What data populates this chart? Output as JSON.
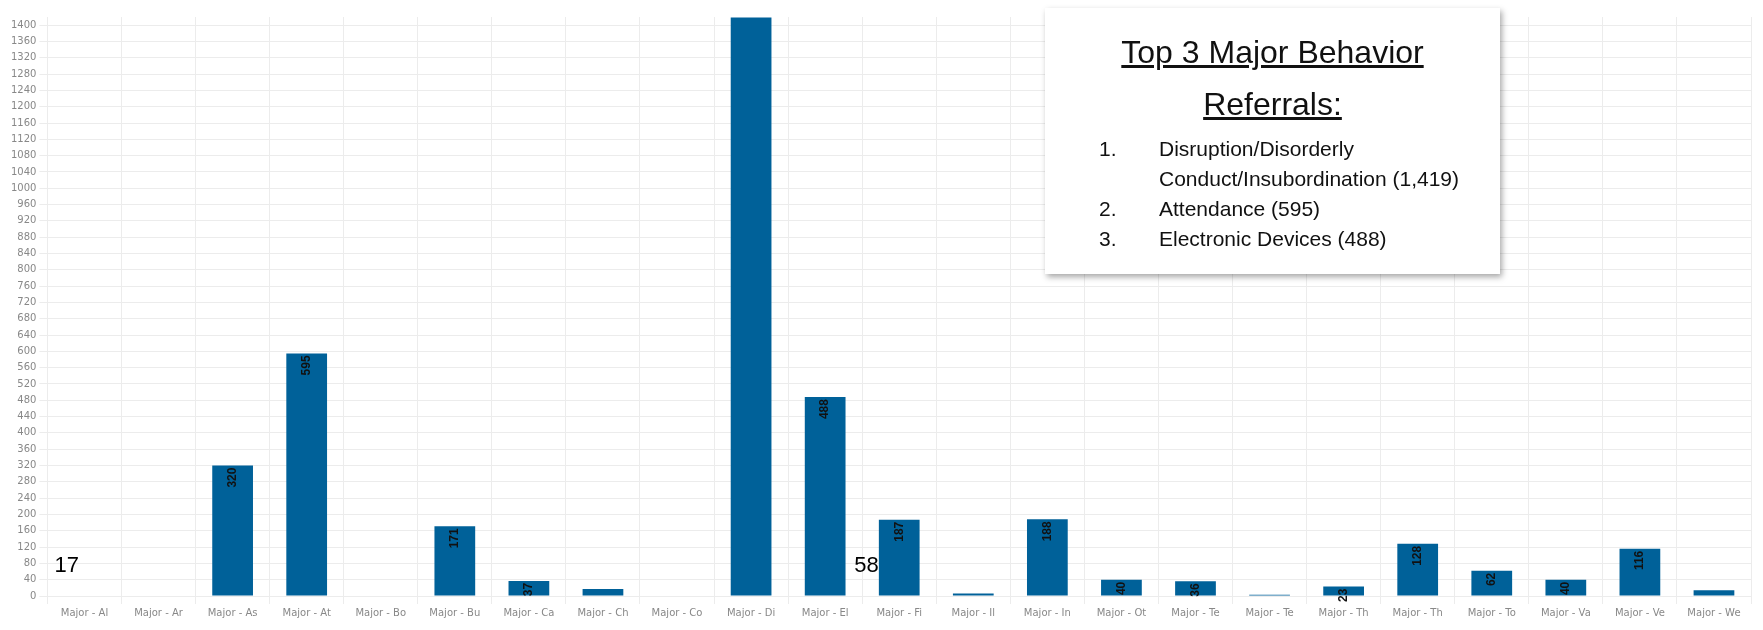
{
  "chart_data": {
    "type": "bar",
    "title": "Top 3 Major Behavior Referrals:",
    "categories": [
      "Major - Al",
      "Major - Ar",
      "Major - As",
      "Major - At",
      "Major - Bo",
      "Major - Bu",
      "Major - Ca",
      "Major - Ch",
      "Major - Co",
      "Major - Di",
      "Major - El",
      "Major - Fi",
      "Major - Il",
      "Major - In",
      "Major - Ot",
      "Major - Te",
      "Major - Te",
      "Major - Th",
      "Major - Th",
      "Major - To",
      "Major - Va",
      "Major - Ve",
      "Major - We"
    ],
    "values": [
      0,
      0,
      320,
      595,
      0,
      171,
      37,
      17,
      0,
      1419,
      488,
      187,
      6,
      188,
      40,
      36,
      3,
      23,
      128,
      62,
      40,
      116,
      14
    ],
    "value_labels": [
      null,
      null,
      "320",
      "595",
      null,
      "171",
      "37",
      null,
      null,
      null,
      "488",
      "187",
      null,
      "188",
      "40",
      "36",
      null,
      "23",
      "128",
      "62",
      "40",
      "116",
      null
    ],
    "color": "#006199",
    "ylim": [
      0,
      1420
    ],
    "yticks": [
      0,
      40,
      80,
      120,
      160,
      200,
      240,
      280,
      320,
      360,
      400,
      440,
      480,
      520,
      560,
      600,
      640,
      680,
      720,
      760,
      800,
      840,
      880,
      920,
      960,
      1000,
      1040,
      1080,
      1120,
      1160,
      1200,
      1240,
      1280,
      1320,
      1360,
      1400
    ],
    "grid": true,
    "annotations": [
      "1.",
      "Disruption/Disorderly Conduct/Insubordination (1,419)",
      "2.",
      "Attendance (595)",
      "3.",
      "Electronic Devices (488)",
      "17",
      "58"
    ]
  }
}
